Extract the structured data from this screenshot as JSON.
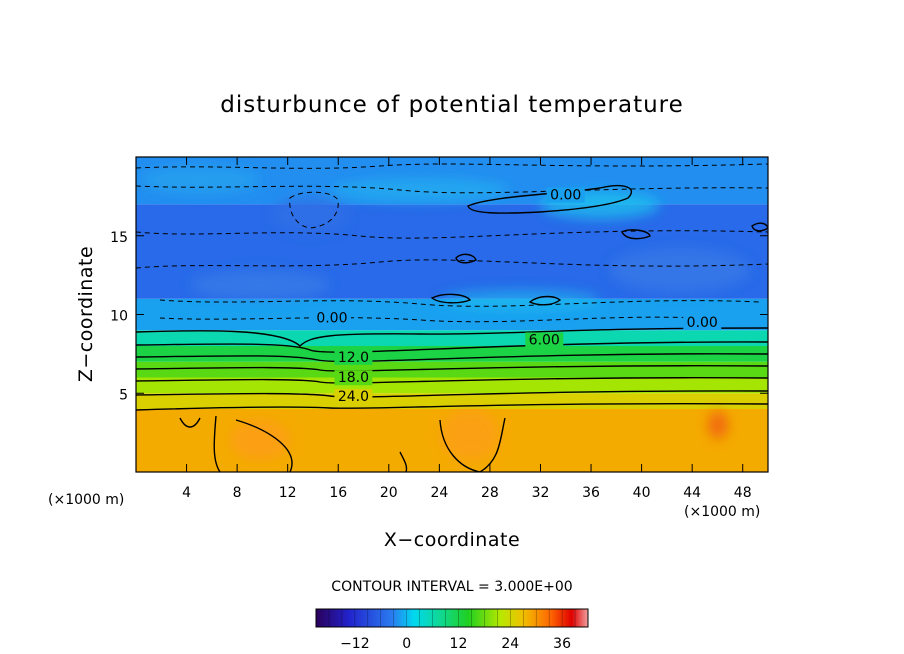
{
  "chart_data": {
    "type": "heatmap",
    "title": "disturbunce of potential temperature",
    "xlabel": "X−coordinate",
    "ylabel": "Z−coordinate",
    "x_unit": "(×1000 m)",
    "x_unit_left": "(×1000 m)",
    "xlim": [
      0,
      50
    ],
    "ylim": [
      0,
      20
    ],
    "x_ticks": [
      4,
      8,
      12,
      16,
      20,
      24,
      28,
      32,
      36,
      40,
      44,
      48
    ],
    "y_ticks": [
      5,
      10,
      15
    ],
    "contour_interval_text": "CONTOUR INTERVAL = 3.000E+00",
    "contour_interval": 3.0,
    "colorbar": {
      "min": -21,
      "max": 42,
      "ticks": [
        -12,
        0,
        12,
        24,
        36
      ],
      "tick_labels": [
        "−12",
        "0",
        "12",
        "24",
        "36"
      ]
    },
    "contour_labels": [
      {
        "text": "0.00",
        "x": 15.5,
        "y": 9.5
      },
      {
        "text": "0.00",
        "x": 44.8,
        "y": 9.2
      },
      {
        "text": "0.00",
        "x": 34.0,
        "y": 17.3
      },
      {
        "text": "6.00",
        "x": 32.3,
        "y": 8.1
      },
      {
        "text": "12.0",
        "x": 17.2,
        "y": 7.0
      },
      {
        "text": "18.0",
        "x": 17.2,
        "y": 5.7
      },
      {
        "text": "24.0",
        "x": 17.2,
        "y": 4.5
      }
    ],
    "layers": [
      {
        "z_bottom": 0,
        "z_top": 4.0,
        "value": 28.5
      },
      {
        "z_bottom": 4.0,
        "z_top": 5.0,
        "value": 25
      },
      {
        "z_bottom": 5.0,
        "z_top": 6.0,
        "value": 21
      },
      {
        "z_bottom": 6.0,
        "z_top": 7.0,
        "value": 17
      },
      {
        "z_bottom": 7.0,
        "z_top": 8.0,
        "value": 12
      },
      {
        "z_bottom": 8.0,
        "z_top": 9.0,
        "value": 6
      },
      {
        "z_bottom": 9.0,
        "z_top": 11.0,
        "value": -1
      },
      {
        "z_bottom": 11.0,
        "z_top": 17.0,
        "value": -5
      },
      {
        "z_bottom": 17.0,
        "z_top": 20.0,
        "value": -2
      }
    ]
  }
}
